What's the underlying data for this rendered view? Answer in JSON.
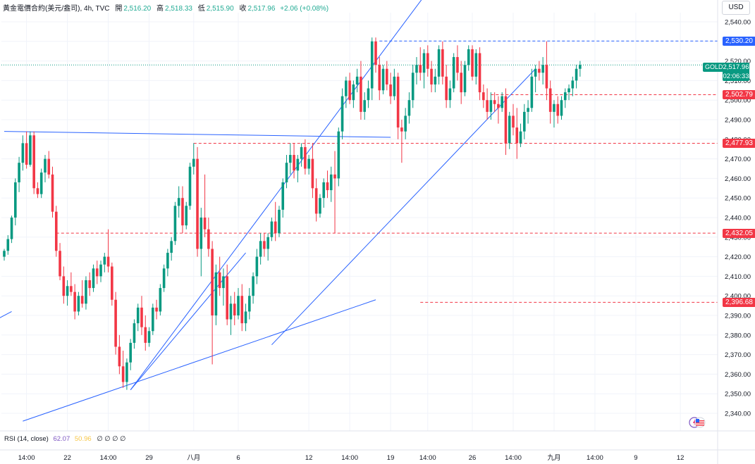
{
  "header": {
    "symbol": "黃金電價合約(美元/盎司)",
    "interval": "4h",
    "source": "TVC",
    "open_label": "開",
    "open_value": "2,516.20",
    "high_label": "高",
    "high_value": "2,518.33",
    "low_label": "低",
    "low_value": "2,515.90",
    "close_label": "收",
    "close_value": "2,517.96",
    "change": "+2.06 (+0.08%)"
  },
  "currency": "USD",
  "current_price": {
    "symbol_tag": "GOLD",
    "price": "2,517.96",
    "countdown": "02:06:33"
  },
  "rsi": {
    "label": "RSI (14, close)",
    "value1": "62.07",
    "value2": "50.96",
    "placeholders": "∅ ∅ ∅ ∅"
  },
  "colors": {
    "up": "#089981",
    "down": "#f23645",
    "trendline": "#2962ff",
    "level_red": "#f23645",
    "level_blue": "#2962ff",
    "grid": "#f0f3fa"
  },
  "chart_data": {
    "type": "candlestick",
    "ylim": [
      2333,
      2550
    ],
    "y_ticks": [
      "2,340.00",
      "2,350.00",
      "2,360.00",
      "2,370.00",
      "2,380.00",
      "2,390.00",
      "2,400.00",
      "2,410.00",
      "2,420.00",
      "2,430.00",
      "2,440.00",
      "2,450.00",
      "2,460.00",
      "2,470.00",
      "2,480.00",
      "2,490.00",
      "2,500.00",
      "2,510.00",
      "2,520.00",
      "2,530.00",
      "2,540.00"
    ],
    "x_ticks": [
      {
        "label": "14:00",
        "index": 6
      },
      {
        "label": "22",
        "index": 17
      },
      {
        "label": "14:00",
        "index": 28
      },
      {
        "label": "29",
        "index": 39
      },
      {
        "label": "八月",
        "index": 51
      },
      {
        "label": "6",
        "index": 63
      },
      {
        "label": "12",
        "index": 82
      },
      {
        "label": "14:00",
        "index": 93
      },
      {
        "label": "19",
        "index": 104
      },
      {
        "label": "14:00",
        "index": 114
      },
      {
        "label": "26",
        "index": 126
      },
      {
        "label": "14:00",
        "index": 137
      },
      {
        "label": "九月",
        "index": 148
      },
      {
        "label": "14:00",
        "index": 159
      },
      {
        "label": "9",
        "index": 170
      },
      {
        "label": "12",
        "index": 182
      }
    ],
    "levels": [
      {
        "price": 2530.2,
        "label": "2,530.20",
        "color": "blue",
        "from_index": 101
      },
      {
        "price": 2502.79,
        "label": "2,502.79",
        "color": "red",
        "from_index": 131
      },
      {
        "price": 2477.93,
        "label": "2,477.93",
        "color": "red",
        "from_index": 51
      },
      {
        "price": 2432.05,
        "label": "2,432.05",
        "color": "red",
        "from_index": 14
      },
      {
        "price": 2396.68,
        "label": "2,396.68",
        "color": "red",
        "from_index": 112
      }
    ],
    "trendlines": [
      {
        "from": [
          0,
          2484
        ],
        "to": [
          104,
          2481
        ]
      },
      {
        "from": [
          5,
          2336
        ],
        "to": [
          100,
          2398
        ]
      },
      {
        "from": [
          34,
          2352
        ],
        "to": [
          65,
          2422
        ]
      },
      {
        "from": [
          34,
          2352
        ],
        "to": [
          113,
          2553
        ]
      },
      {
        "from": [
          72,
          2375
        ],
        "to": [
          143,
          2516
        ]
      },
      {
        "from": [
          -2,
          2388
        ],
        "to": [
          2,
          2392
        ]
      }
    ],
    "candles": [
      [
        2420,
        2424,
        2418,
        2423
      ],
      [
        2423,
        2431,
        2421,
        2429
      ],
      [
        2429,
        2441,
        2427,
        2440
      ],
      [
        2440,
        2460,
        2436,
        2458
      ],
      [
        2458,
        2471,
        2453,
        2468
      ],
      [
        2468,
        2482,
        2464,
        2478
      ],
      [
        2478,
        2484,
        2465,
        2467
      ],
      [
        2467,
        2484,
        2466,
        2482
      ],
      [
        2482,
        2484,
        2452,
        2455
      ],
      [
        2455,
        2458,
        2450,
        2452
      ],
      [
        2452,
        2465,
        2450,
        2463
      ],
      [
        2463,
        2472,
        2458,
        2470
      ],
      [
        2470,
        2474,
        2460,
        2462
      ],
      [
        2462,
        2466,
        2440,
        2443
      ],
      [
        2443,
        2446,
        2420,
        2423
      ],
      [
        2423,
        2427,
        2408,
        2410
      ],
      [
        2410,
        2415,
        2396,
        2400
      ],
      [
        2400,
        2408,
        2395,
        2405
      ],
      [
        2405,
        2412,
        2400,
        2402
      ],
      [
        2402,
        2406,
        2388,
        2392
      ],
      [
        2392,
        2402,
        2390,
        2400
      ],
      [
        2400,
        2408,
        2394,
        2396
      ],
      [
        2396,
        2410,
        2393,
        2408
      ],
      [
        2408,
        2412,
        2400,
        2404
      ],
      [
        2404,
        2416,
        2402,
        2414
      ],
      [
        2414,
        2418,
        2406,
        2410
      ],
      [
        2410,
        2418,
        2407,
        2416
      ],
      [
        2416,
        2422,
        2412,
        2420
      ],
      [
        2420,
        2434,
        2412,
        2415
      ],
      [
        2415,
        2417,
        2395,
        2398
      ],
      [
        2398,
        2402,
        2370,
        2374
      ],
      [
        2374,
        2380,
        2360,
        2364
      ],
      [
        2364,
        2372,
        2353,
        2356
      ],
      [
        2356,
        2368,
        2352,
        2366
      ],
      [
        2366,
        2378,
        2362,
        2376
      ],
      [
        2376,
        2388,
        2373,
        2386
      ],
      [
        2386,
        2396,
        2382,
        2394
      ],
      [
        2394,
        2400,
        2380,
        2384
      ],
      [
        2384,
        2390,
        2372,
        2376
      ],
      [
        2376,
        2384,
        2374,
        2382
      ],
      [
        2382,
        2396,
        2380,
        2394
      ],
      [
        2394,
        2398,
        2388,
        2392
      ],
      [
        2392,
        2406,
        2390,
        2404
      ],
      [
        2404,
        2416,
        2402,
        2414
      ],
      [
        2414,
        2424,
        2410,
        2422
      ],
      [
        2422,
        2430,
        2418,
        2428
      ],
      [
        2428,
        2448,
        2426,
        2446
      ],
      [
        2446,
        2456,
        2440,
        2450
      ],
      [
        2450,
        2456,
        2432,
        2436
      ],
      [
        2436,
        2448,
        2434,
        2446
      ],
      [
        2446,
        2468,
        2444,
        2466
      ],
      [
        2466,
        2478,
        2462,
        2470
      ],
      [
        2470,
        2476,
        2420,
        2424
      ],
      [
        2424,
        2445,
        2410,
        2440
      ],
      [
        2440,
        2462,
        2430,
        2434
      ],
      [
        2434,
        2440,
        2420,
        2424
      ],
      [
        2424,
        2428,
        2365,
        2390
      ],
      [
        2390,
        2416,
        2385,
        2412
      ],
      [
        2412,
        2420,
        2400,
        2404
      ],
      [
        2404,
        2414,
        2395,
        2410
      ],
      [
        2410,
        2416,
        2385,
        2388
      ],
      [
        2388,
        2400,
        2380,
        2396
      ],
      [
        2396,
        2402,
        2385,
        2390
      ],
      [
        2390,
        2404,
        2388,
        2400
      ],
      [
        2400,
        2406,
        2382,
        2386
      ],
      [
        2386,
        2396,
        2382,
        2392
      ],
      [
        2392,
        2404,
        2388,
        2400
      ],
      [
        2400,
        2412,
        2396,
        2410
      ],
      [
        2410,
        2424,
        2406,
        2420
      ],
      [
        2420,
        2432,
        2416,
        2428
      ],
      [
        2428,
        2432,
        2420,
        2424
      ],
      [
        2424,
        2432,
        2418,
        2430
      ],
      [
        2430,
        2440,
        2428,
        2438
      ],
      [
        2438,
        2448,
        2428,
        2432
      ],
      [
        2432,
        2446,
        2430,
        2444
      ],
      [
        2444,
        2460,
        2440,
        2458
      ],
      [
        2458,
        2472,
        2455,
        2468
      ],
      [
        2468,
        2478,
        2462,
        2472
      ],
      [
        2472,
        2478,
        2460,
        2464
      ],
      [
        2464,
        2472,
        2458,
        2470
      ],
      [
        2470,
        2478,
        2466,
        2476
      ],
      [
        2476,
        2480,
        2462,
        2465
      ],
      [
        2465,
        2472,
        2462,
        2470
      ],
      [
        2470,
        2478,
        2450,
        2455
      ],
      [
        2455,
        2460,
        2438,
        2442
      ],
      [
        2442,
        2452,
        2440,
        2450
      ],
      [
        2450,
        2460,
        2445,
        2458
      ],
      [
        2458,
        2464,
        2450,
        2454
      ],
      [
        2454,
        2466,
        2448,
        2462
      ],
      [
        2462,
        2474,
        2432,
        2460
      ],
      [
        2460,
        2486,
        2456,
        2484
      ],
      [
        2484,
        2506,
        2480,
        2502
      ],
      [
        2502,
        2512,
        2496,
        2510
      ],
      [
        2510,
        2514,
        2498,
        2500
      ],
      [
        2500,
        2510,
        2496,
        2508
      ],
      [
        2508,
        2516,
        2504,
        2512
      ],
      [
        2512,
        2520,
        2490,
        2494
      ],
      [
        2494,
        2504,
        2490,
        2500
      ],
      [
        2500,
        2510,
        2496,
        2506
      ],
      [
        2506,
        2532,
        2500,
        2530
      ],
      [
        2530,
        2532,
        2514,
        2518
      ],
      [
        2518,
        2522,
        2500,
        2505
      ],
      [
        2505,
        2518,
        2503,
        2516
      ],
      [
        2516,
        2520,
        2505,
        2508
      ],
      [
        2508,
        2514,
        2498,
        2502
      ],
      [
        2502,
        2516,
        2500,
        2512
      ],
      [
        2512,
        2514,
        2480,
        2486
      ],
      [
        2486,
        2490,
        2468,
        2484
      ],
      [
        2484,
        2496,
        2480,
        2492
      ],
      [
        2492,
        2504,
        2488,
        2500
      ],
      [
        2500,
        2518,
        2496,
        2514
      ],
      [
        2514,
        2522,
        2508,
        2518
      ],
      [
        2518,
        2527,
        2510,
        2514
      ],
      [
        2514,
        2526,
        2506,
        2524
      ],
      [
        2524,
        2528,
        2512,
        2516
      ],
      [
        2516,
        2520,
        2504,
        2508
      ],
      [
        2508,
        2516,
        2504,
        2512
      ],
      [
        2512,
        2528,
        2508,
        2526
      ],
      [
        2526,
        2530,
        2508,
        2512
      ],
      [
        2512,
        2518,
        2496,
        2500
      ],
      [
        2500,
        2510,
        2496,
        2506
      ],
      [
        2506,
        2524,
        2504,
        2522
      ],
      [
        2522,
        2528,
        2510,
        2514
      ],
      [
        2514,
        2520,
        2498,
        2504
      ],
      [
        2504,
        2520,
        2502,
        2518
      ],
      [
        2518,
        2528,
        2515,
        2526
      ],
      [
        2526,
        2528,
        2510,
        2512
      ],
      [
        2512,
        2526,
        2508,
        2524
      ],
      [
        2524,
        2527,
        2500,
        2504
      ],
      [
        2504,
        2508,
        2496,
        2500
      ],
      [
        2500,
        2506,
        2490,
        2494
      ],
      [
        2494,
        2504,
        2490,
        2500
      ],
      [
        2500,
        2504,
        2494,
        2498
      ],
      [
        2498,
        2502,
        2488,
        2496
      ],
      [
        2496,
        2504,
        2494,
        2502
      ],
      [
        2502,
        2506,
        2472,
        2478
      ],
      [
        2478,
        2494,
        2475,
        2492
      ],
      [
        2492,
        2498,
        2482,
        2486
      ],
      [
        2486,
        2496,
        2470,
        2478
      ],
      [
        2478,
        2488,
        2476,
        2484
      ],
      [
        2484,
        2498,
        2480,
        2494
      ],
      [
        2494,
        2500,
        2488,
        2496
      ],
      [
        2496,
        2516,
        2494,
        2512
      ],
      [
        2512,
        2518,
        2504,
        2516
      ],
      [
        2516,
        2520,
        2510,
        2514
      ],
      [
        2514,
        2522,
        2508,
        2518
      ],
      [
        2518,
        2530,
        2500,
        2506
      ],
      [
        2506,
        2510,
        2488,
        2494
      ],
      [
        2494,
        2500,
        2486,
        2498
      ],
      [
        2498,
        2502,
        2488,
        2492
      ],
      [
        2492,
        2502,
        2490,
        2500
      ],
      [
        2500,
        2506,
        2496,
        2504
      ],
      [
        2504,
        2508,
        2500,
        2506
      ],
      [
        2506,
        2512,
        2502,
        2510
      ],
      [
        2510,
        2518,
        2506,
        2516
      ],
      [
        2516,
        2520,
        2512,
        2518
      ]
    ]
  }
}
